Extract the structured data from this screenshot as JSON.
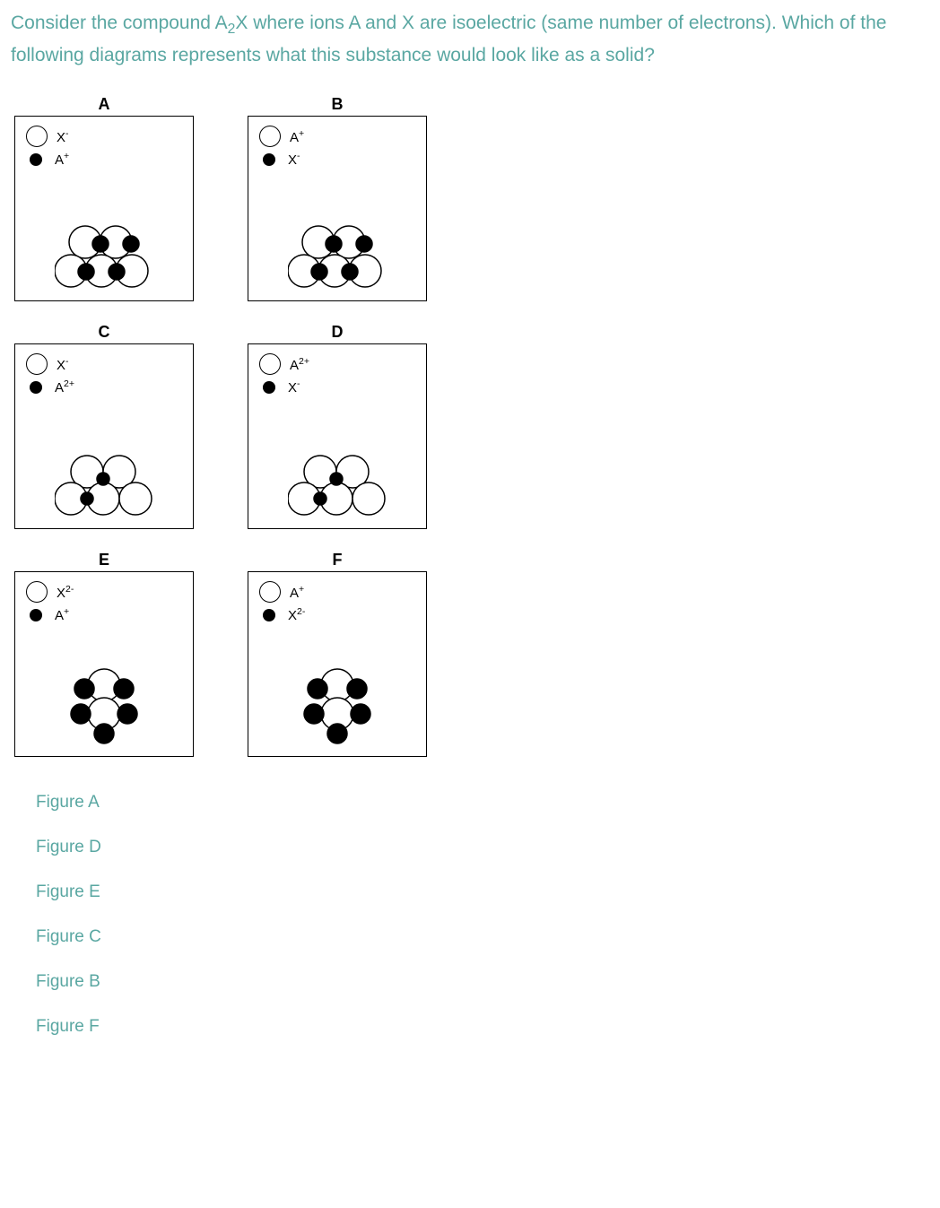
{
  "question": {
    "text_before_formula": "Consider the compound A",
    "formula_sub": "2",
    "text_after_formula": "X where ions A and X are isoelectric (same number of electrons). Which of the following diagrams represents what this substance would look like as a solid?"
  },
  "colors": {
    "question_text": "#5aa7a2",
    "option_text": "#5aa7a2",
    "figure_border": "#000000",
    "background": "#ffffff"
  },
  "figures": [
    {
      "label": "A",
      "legend": {
        "open": {
          "text": "X",
          "sup": "-"
        },
        "filled": {
          "text": "A",
          "sup": "+"
        }
      },
      "diagram": {
        "type": "cluster_A",
        "big_r": 18,
        "small_r": 9
      }
    },
    {
      "label": "B",
      "legend": {
        "open": {
          "text": "A",
          "sup": "+"
        },
        "filled": {
          "text": "X",
          "sup": "-"
        }
      },
      "diagram": {
        "type": "cluster_A",
        "big_r": 18,
        "small_r": 9
      }
    },
    {
      "label": "C",
      "legend": {
        "open": {
          "text": "X",
          "sup": "-"
        },
        "filled": {
          "text": "A",
          "sup": "2+"
        }
      },
      "diagram": {
        "type": "cluster_C",
        "big_r": 18,
        "small_r": 7
      }
    },
    {
      "label": "D",
      "legend": {
        "open": {
          "text": "A",
          "sup": "2+"
        },
        "filled": {
          "text": "X",
          "sup": "-"
        }
      },
      "diagram": {
        "type": "cluster_C",
        "big_r": 18,
        "small_r": 7
      }
    },
    {
      "label": "E",
      "legend": {
        "open": {
          "text": "X",
          "sup": "2-"
        },
        "filled": {
          "text": "A",
          "sup": "+"
        }
      },
      "diagram": {
        "type": "cluster_E",
        "big_r": 18,
        "small_r": 11
      }
    },
    {
      "label": "F",
      "legend": {
        "open": {
          "text": "A",
          "sup": "+"
        },
        "filled": {
          "text": "X",
          "sup": "2-"
        }
      },
      "diagram": {
        "type": "cluster_E",
        "big_r": 18,
        "small_r": 11
      }
    }
  ],
  "options": [
    "Figure A",
    "Figure D",
    "Figure E",
    "Figure C",
    "Figure B",
    "Figure F"
  ]
}
